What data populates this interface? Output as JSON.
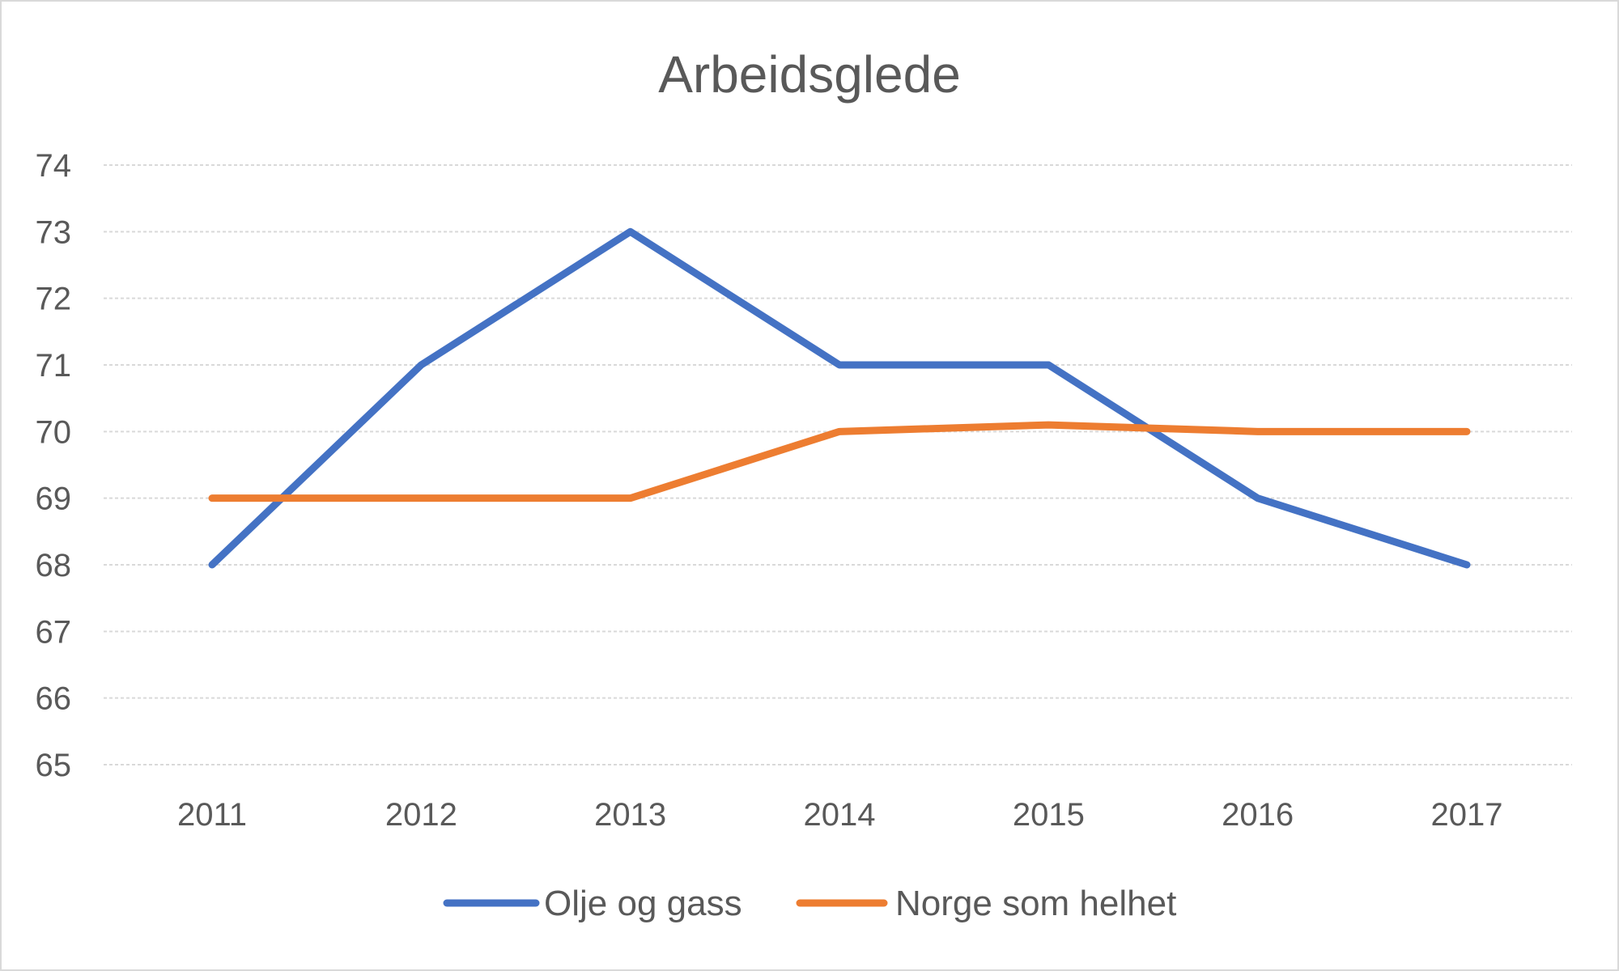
{
  "chart_data": {
    "type": "line",
    "title": "Arbeidsglede",
    "xlabel": "",
    "ylabel": "",
    "categories": [
      "2011",
      "2012",
      "2013",
      "2014",
      "2015",
      "2016",
      "2017"
    ],
    "series": [
      {
        "name": "Olje og gass",
        "color": "#4472c4",
        "values": [
          68,
          71,
          73,
          71,
          71,
          69,
          68
        ]
      },
      {
        "name": "Norge som helhet",
        "color": "#ed7d31",
        "values": [
          69,
          69,
          69,
          70,
          70.1,
          70,
          70
        ]
      }
    ],
    "ylim": [
      65,
      74
    ],
    "yticks": [
      "65",
      "66",
      "67",
      "68",
      "69",
      "70",
      "71",
      "72",
      "73",
      "74"
    ],
    "grid": true,
    "gridline_color": "#d9d9d9",
    "legend_position": "bottom"
  }
}
